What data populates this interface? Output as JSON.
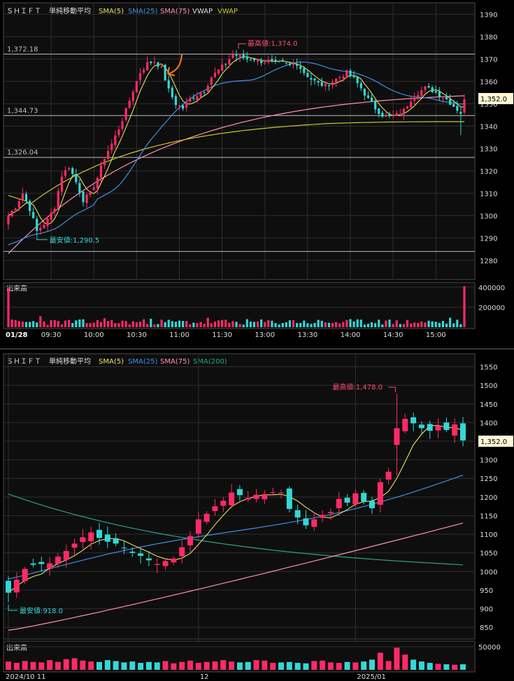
{
  "colors": {
    "background": "#000000",
    "panel": "#0e0e0e",
    "grid": "#2e2e2e",
    "frame": "#4a4a4a",
    "up": "#ff2a68",
    "down": "#33d7d7",
    "sma5": "#e7e35a",
    "sma25": "#3f8fe6",
    "sma75": "#ff8fb0",
    "sma200": "#2aa58a",
    "vwap": "#c9c92a",
    "axis_text": "#dddddd",
    "high_label": "#ff4d6d",
    "low_label": "#33d7d7",
    "price_box": "#fff7d6",
    "arrow": "#ff7a1a"
  },
  "chart_data": [
    {
      "type": "candlestick",
      "panel": "intraday",
      "date_label": "01/28",
      "legend": [
        {
          "text": "ＳＨＩＦＴ",
          "color_key": "axis_text"
        },
        {
          "text": "単純移動平均",
          "color_key": "axis_text"
        },
        {
          "text": "SMA(5)",
          "color_key": "sma5"
        },
        {
          "text": "SMA(25)",
          "color_key": "sma25"
        },
        {
          "text": "SMA(75)",
          "color_key": "sma75"
        },
        {
          "text": "VWAP",
          "color_key": "axis_text"
        },
        {
          "text": "VWAP",
          "color_key": "vwap"
        }
      ],
      "y_ticks": [
        1390,
        1380,
        1370,
        1360,
        1350,
        1340,
        1330,
        1320,
        1310,
        1300,
        1290,
        1280
      ],
      "ylim": [
        1277,
        1392
      ],
      "x_ticks": [
        "09:30",
        "10:00",
        "10:30",
        "11:00",
        "11:30",
        "13:00",
        "13:30",
        "14:00",
        "14:30",
        "15:00"
      ],
      "x_tick_index": [
        12,
        24,
        36,
        48,
        60,
        72,
        84,
        96,
        108,
        120
      ],
      "reference_lines": [
        {
          "value": 1372.18,
          "label": "1,372.18"
        },
        {
          "value": 1344.73,
          "label": "1,344.73"
        },
        {
          "value": 1326.04,
          "label": "1,326.04"
        },
        {
          "value": 1284.0,
          "label": ""
        }
      ],
      "high_label": "最高値:1,374.0",
      "high": {
        "index": 64,
        "value": 1374.0
      },
      "low_label": "最安値:1,290.5",
      "low": {
        "index": 8,
        "value": 1290.5
      },
      "last_price": 1352.0,
      "last_price_label": "1,352.0",
      "anchors": [
        [
          0,
          1300
        ],
        [
          2,
          1304
        ],
        [
          4,
          1310
        ],
        [
          6,
          1303
        ],
        [
          8,
          1293
        ],
        [
          11,
          1298
        ],
        [
          13,
          1304
        ],
        [
          15,
          1318
        ],
        [
          17,
          1322
        ],
        [
          19,
          1315
        ],
        [
          21,
          1307
        ],
        [
          23,
          1310
        ],
        [
          25,
          1317
        ],
        [
          27,
          1326
        ],
        [
          29,
          1332
        ],
        [
          31,
          1339
        ],
        [
          33,
          1347
        ],
        [
          35,
          1356
        ],
        [
          37,
          1364
        ],
        [
          39,
          1368
        ],
        [
          41,
          1369
        ],
        [
          43,
          1366
        ],
        [
          45,
          1356
        ],
        [
          47,
          1350
        ],
        [
          49,
          1348
        ],
        [
          51,
          1352
        ],
        [
          53,
          1354
        ],
        [
          55,
          1356
        ],
        [
          57,
          1362
        ],
        [
          59,
          1365
        ],
        [
          61,
          1368
        ],
        [
          63,
          1372
        ],
        [
          65,
          1371
        ],
        [
          67,
          1370
        ],
        [
          69,
          1370
        ],
        [
          71,
          1369
        ],
        [
          73,
          1369
        ],
        [
          75,
          1368
        ],
        [
          77,
          1368
        ],
        [
          79,
          1367
        ],
        [
          81,
          1368
        ],
        [
          83,
          1364
        ],
        [
          85,
          1361
        ],
        [
          87,
          1359
        ],
        [
          89,
          1358
        ],
        [
          91,
          1360
        ],
        [
          93,
          1362
        ],
        [
          95,
          1364
        ],
        [
          97,
          1361
        ],
        [
          99,
          1357
        ],
        [
          101,
          1352
        ],
        [
          103,
          1348
        ],
        [
          105,
          1345
        ],
        [
          107,
          1344
        ],
        [
          109,
          1345
        ],
        [
          111,
          1347
        ],
        [
          113,
          1352
        ],
        [
          115,
          1355
        ],
        [
          117,
          1357
        ],
        [
          119,
          1356
        ],
        [
          121,
          1354
        ],
        [
          123,
          1352
        ],
        [
          125,
          1349
        ],
        [
          127,
          1346
        ],
        [
          128,
          1352
        ]
      ],
      "candle_count": 129,
      "volume": {
        "label": "出来高",
        "ticks": [
          400000,
          200000
        ],
        "ylim": [
          0,
          420000
        ],
        "base": 60000,
        "peaks": [
          [
            0,
            390000
          ],
          [
            128,
            410000
          ],
          [
            9,
            110000
          ],
          [
            27,
            90000
          ],
          [
            40,
            85000
          ],
          [
            56,
            95000
          ],
          [
            80,
            70000
          ],
          [
            104,
            75000
          ],
          [
            124,
            95000
          ]
        ]
      }
    },
    {
      "type": "candlestick",
      "panel": "daily",
      "legend": [
        {
          "text": "ＳＨＩＦＴ",
          "color_key": "axis_text"
        },
        {
          "text": "単純移動平均",
          "color_key": "axis_text"
        },
        {
          "text": "SMA(5)",
          "color_key": "sma5"
        },
        {
          "text": "SMA(25)",
          "color_key": "sma25"
        },
        {
          "text": "SMA(75)",
          "color_key": "sma75"
        },
        {
          "text": "SMA(200)",
          "color_key": "sma200"
        }
      ],
      "y_ticks": [
        1550,
        1500,
        1450,
        1400,
        1350,
        1300,
        1250,
        1200,
        1150,
        1100,
        1050,
        1000,
        950,
        900,
        850
      ],
      "ylim": [
        826,
        1566
      ],
      "x_ticks": [
        "2024/10 11",
        "12",
        "2025/01"
      ],
      "x_tick_index": [
        0,
        23,
        42
      ],
      "high_label": "最高値:1,478.0",
      "high": {
        "index": 47,
        "value": 1478.0
      },
      "low_label": "最安値:918.0",
      "low": {
        "index": 0,
        "value": 918.0
      },
      "last_price": 1352.0,
      "last_price_label": "1,352.0",
      "closes": [
        943,
        978,
        1007,
        1018,
        1020,
        1022,
        1040,
        1055,
        1075,
        1092,
        1105,
        1090,
        1080,
        1075,
        1062,
        1050,
        1042,
        1030,
        1020,
        1028,
        1035,
        1065,
        1095,
        1140,
        1155,
        1175,
        1190,
        1212,
        1205,
        1198,
        1206,
        1208,
        1213,
        1212,
        1168,
        1145,
        1124,
        1140,
        1152,
        1160,
        1195,
        1185,
        1210,
        1188,
        1170,
        1240,
        1268,
        1385,
        1410,
        1398,
        1385,
        1378,
        1392,
        1380,
        1395,
        1352
      ],
      "volume": {
        "label": "出来高",
        "ticks": [
          50000
        ],
        "ylim": [
          0,
          56000
        ],
        "values": [
          18000,
          15000,
          19000,
          17000,
          16000,
          21000,
          17000,
          23000,
          25000,
          20000,
          18000,
          17000,
          21000,
          19000,
          16000,
          18000,
          15000,
          17000,
          16000,
          19000,
          14000,
          17000,
          20000,
          15000,
          17000,
          18000,
          21000,
          18000,
          16000,
          17000,
          21000,
          20000,
          15000,
          16000,
          17000,
          15000,
          14000,
          19000,
          20000,
          16000,
          15000,
          17000,
          16000,
          18000,
          22000,
          37000,
          19000,
          48000,
          33000,
          22000,
          18000,
          15000,
          13000,
          12000,
          11000,
          12000
        ]
      }
    }
  ]
}
